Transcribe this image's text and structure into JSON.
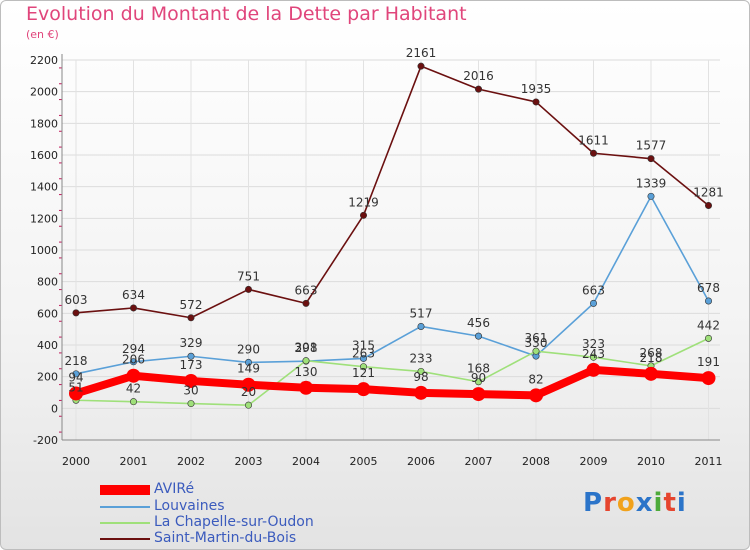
{
  "logo": {
    "text": "Proxiti"
  },
  "chart_data": {
    "type": "line",
    "title": "Evolution du Montant de la Dette par Habitant",
    "ylabel": "(en €)",
    "xlabel": "",
    "x": [
      "2000",
      "2001",
      "2002",
      "2003",
      "2004",
      "2005",
      "2006",
      "2007",
      "2008",
      "2009",
      "2010",
      "2011"
    ],
    "yticks": [
      "-200",
      "0",
      "200",
      "400",
      "600",
      "800",
      "1000",
      "1200",
      "1400",
      "1600",
      "1800",
      "2000",
      "2200"
    ],
    "ylim": [
      -200,
      2200
    ],
    "grid": true,
    "legend_position": "bottom-left",
    "series": [
      {
        "name": "AVIRé",
        "color": "#ff0000",
        "values": [
          94,
          206,
          173,
          149,
          130,
          121,
          98,
          90,
          82,
          243,
          218,
          191
        ]
      },
      {
        "name": "Louvaines",
        "color": "#5aa0d8",
        "values": [
          218,
          294,
          329,
          290,
          298,
          315,
          517,
          456,
          330,
          663,
          1339,
          678
        ]
      },
      {
        "name": "La Chapelle-sur-Oudon",
        "color": "#9fe07a",
        "values": [
          51,
          42,
          30,
          20,
          301,
          263,
          233,
          168,
          361,
          323,
          268,
          442
        ]
      },
      {
        "name": "Saint-Martin-du-Bois",
        "color": "#6b1010",
        "values": [
          603,
          634,
          572,
          751,
          663,
          1219,
          2161,
          2016,
          1935,
          1611,
          1577,
          1281
        ]
      }
    ]
  }
}
